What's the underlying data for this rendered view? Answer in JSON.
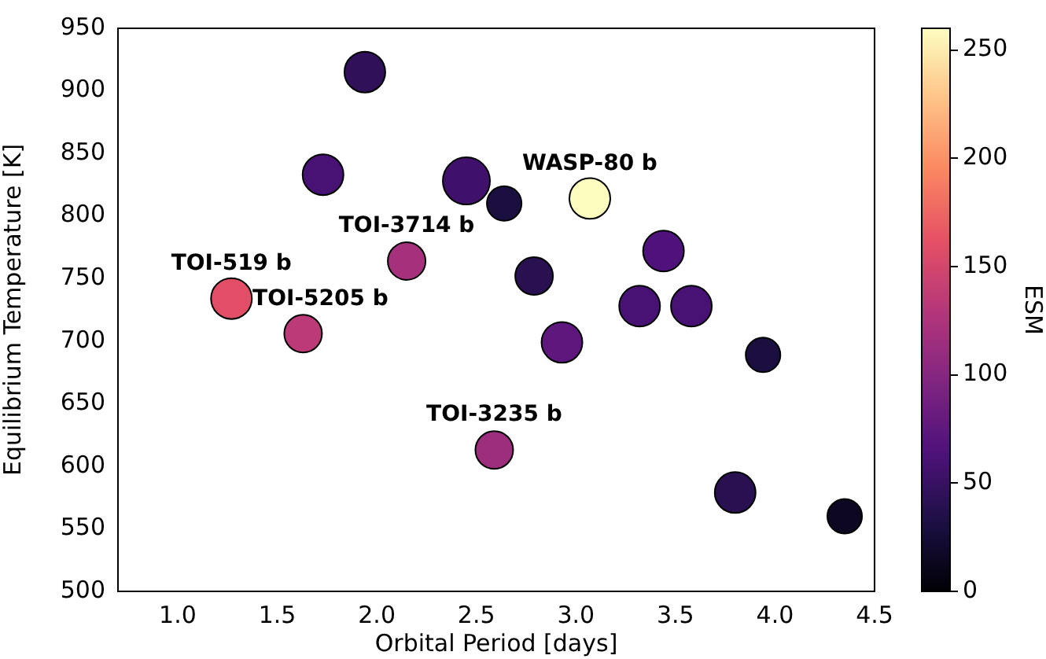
{
  "chart_data": {
    "type": "bubble",
    "xlabel": "Orbital Period [days]",
    "ylabel": "Equilibrium Temperature [K]",
    "clabel": "ESM",
    "x": [
      1.94,
      1.73,
      2.45,
      2.64,
      3.07,
      2.15,
      1.27,
      1.63,
      2.79,
      3.44,
      3.32,
      3.58,
      2.93,
      2.59,
      3.94,
      3.8,
      4.35
    ],
    "values": [
      915,
      833,
      828,
      810,
      814,
      764,
      734,
      706,
      752,
      772,
      728,
      728,
      699,
      613,
      689,
      579,
      560
    ],
    "sizes": [
      0.75,
      0.75,
      1,
      0.54,
      0.75,
      0.64,
      0.75,
      0.64,
      0.64,
      0.75,
      0.75,
      0.75,
      0.75,
      0.64,
      0.54,
      0.75,
      0.54
    ],
    "cvalues": [
      45,
      60,
      55,
      30,
      260,
      120,
      160,
      135,
      40,
      65,
      60,
      60,
      75,
      115,
      30,
      40,
      15
    ],
    "xlim": [
      0.7,
      4.5
    ],
    "xticks": [
      {
        "value": 1,
        "label": "1.0"
      },
      1.5,
      {
        "value": 2,
        "label": "2.0"
      },
      2.5,
      {
        "value": 3,
        "label": "3.0"
      },
      3.5,
      {
        "value": 4,
        "label": "4.0"
      },
      4.5
    ],
    "ylim": [
      500,
      950
    ],
    "yticks": [
      500,
      550,
      600,
      650,
      700,
      750,
      800,
      850,
      900,
      950
    ],
    "clim": [
      0,
      260
    ],
    "cticks": [
      0,
      50,
      100,
      150,
      200,
      250
    ],
    "annotations": [
      {
        "text": "TOI-519 b",
        "x": 1.27,
        "y": 734
      },
      {
        "text": "TOI-5205 b",
        "x": 1.63,
        "y": 706
      },
      {
        "text": "TOI-3714 b",
        "x": 2.15,
        "y": 764
      },
      {
        "text": "WASP-80 b",
        "x": 3.07,
        "y": 814
      },
      {
        "text": "TOI-3235 b",
        "x": 2.59,
        "y": 613
      }
    ]
  }
}
